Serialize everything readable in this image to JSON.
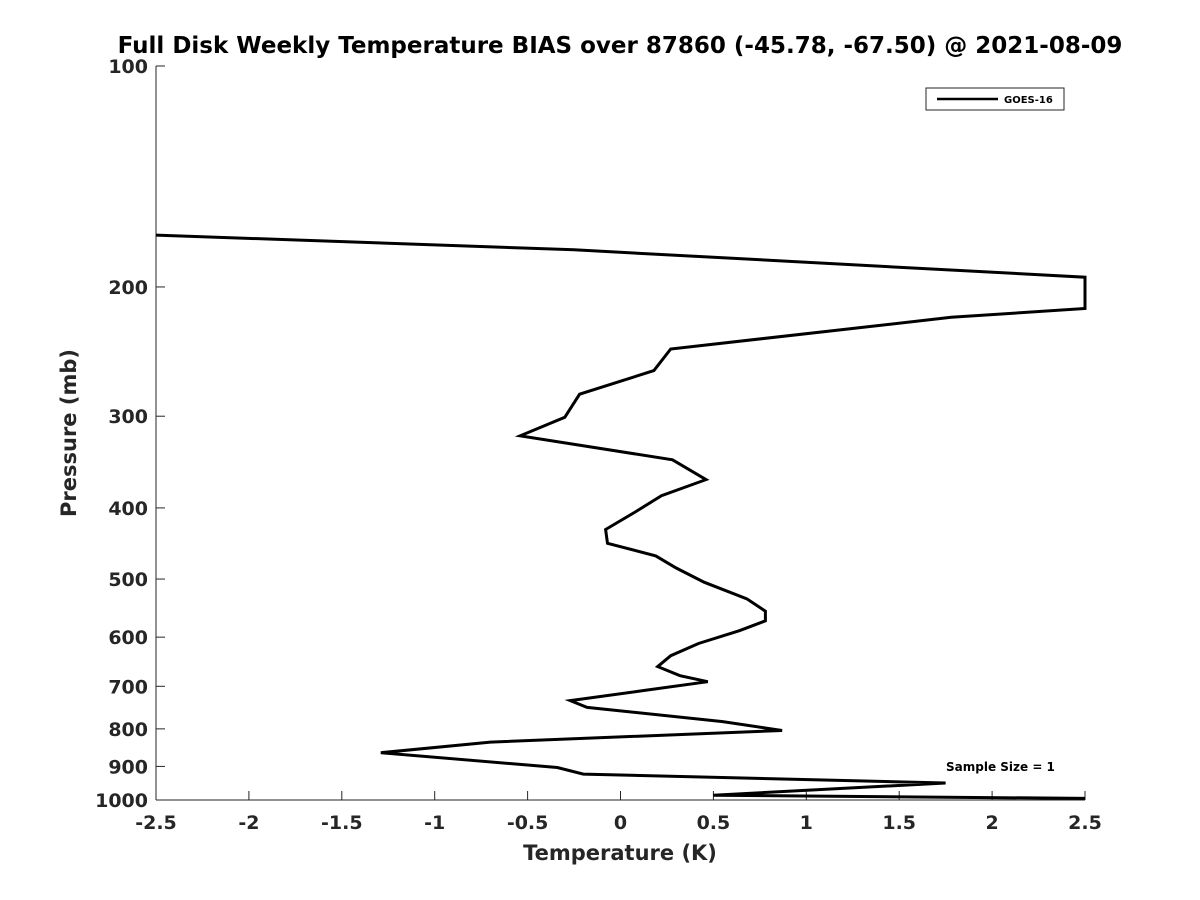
{
  "chart_data": {
    "type": "line",
    "title": "Full Disk Weekly Temperature BIAS over 87860 (-45.78, -67.50) @ 2021-08-09",
    "xlabel": "Temperature (K)",
    "ylabel": "Pressure (mb)",
    "xlim": [
      -2.5,
      2.5
    ],
    "ylim": [
      100,
      1000
    ],
    "y_scale": "log",
    "y_reversed": true,
    "x_ticks": [
      -2.5,
      -2,
      -1.5,
      -1,
      -0.5,
      0,
      0.5,
      1,
      1.5,
      2,
      2.5
    ],
    "x_tick_labels": [
      "-2.5",
      "-2",
      "-1.5",
      "-1",
      "-0.5",
      "0",
      "0.5",
      "1",
      "1.5",
      "2",
      "2.5"
    ],
    "y_ticks": [
      100,
      200,
      300,
      400,
      500,
      600,
      700,
      800,
      900,
      1000
    ],
    "y_tick_labels": [
      "100",
      "200",
      "300",
      "400",
      "500",
      "600",
      "700",
      "800",
      "900",
      "1000"
    ],
    "grid": false,
    "legend_position": "top-right",
    "series": [
      {
        "name": "GOES-16",
        "color": "#000000",
        "points": [
          {
            "t": -2.5,
            "p": 170
          },
          {
            "t": -0.25,
            "p": 178
          },
          {
            "t": 2.5,
            "p": 194
          },
          {
            "t": 2.5,
            "p": 214
          },
          {
            "t": 1.78,
            "p": 220
          },
          {
            "t": 0.27,
            "p": 243
          },
          {
            "t": 0.18,
            "p": 260
          },
          {
            "t": -0.22,
            "p": 280
          },
          {
            "t": -0.3,
            "p": 301
          },
          {
            "t": -0.54,
            "p": 319
          },
          {
            "t": 0.28,
            "p": 344
          },
          {
            "t": 0.46,
            "p": 366
          },
          {
            "t": 0.22,
            "p": 385
          },
          {
            "t": 0.08,
            "p": 405
          },
          {
            "t": -0.08,
            "p": 428
          },
          {
            "t": -0.07,
            "p": 447
          },
          {
            "t": 0.19,
            "p": 465
          },
          {
            "t": 0.3,
            "p": 483
          },
          {
            "t": 0.45,
            "p": 505
          },
          {
            "t": 0.68,
            "p": 532
          },
          {
            "t": 0.78,
            "p": 553
          },
          {
            "t": 0.78,
            "p": 570
          },
          {
            "t": 0.64,
            "p": 588
          },
          {
            "t": 0.42,
            "p": 612
          },
          {
            "t": 0.27,
            "p": 636
          },
          {
            "t": 0.2,
            "p": 658
          },
          {
            "t": 0.32,
            "p": 677
          },
          {
            "t": 0.47,
            "p": 690
          },
          {
            "t": 0.13,
            "p": 709
          },
          {
            "t": -0.27,
            "p": 732
          },
          {
            "t": -0.18,
            "p": 748
          },
          {
            "t": 0.55,
            "p": 782
          },
          {
            "t": 0.87,
            "p": 804
          },
          {
            "t": -0.7,
            "p": 834
          },
          {
            "t": -1.29,
            "p": 862
          },
          {
            "t": -0.34,
            "p": 903
          },
          {
            "t": -0.2,
            "p": 922
          },
          {
            "t": 1.75,
            "p": 948
          },
          {
            "t": 0.5,
            "p": 985
          },
          {
            "t": 2.5,
            "p": 995
          }
        ]
      }
    ],
    "annotations": [
      {
        "text": "Sample Size = 1",
        "position": "bottom-right"
      }
    ]
  }
}
